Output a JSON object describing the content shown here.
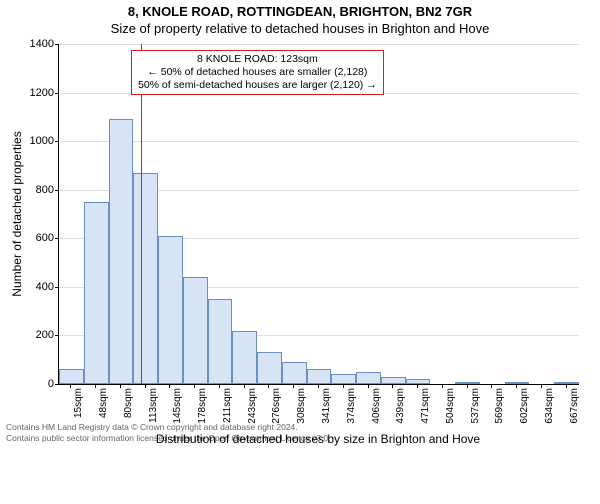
{
  "title_main": "8, KNOLE ROAD, ROTTINGDEAN, BRIGHTON, BN2 7GR",
  "title_sub": "Size of property relative to detached houses in Brighton and Hove",
  "chart": {
    "type": "histogram",
    "bar_color": "#d6e4f5",
    "bar_border_color": "#6a8fc0",
    "grid_color": "#e0e0e0",
    "background_color": "#ffffff",
    "ylabel": "Number of detached properties",
    "xlabel": "Distribution of detached houses by size in Brighton and Hove",
    "ylim_max": 1400,
    "ytick_step": 200,
    "x_categories": [
      "15sqm",
      "48sqm",
      "80sqm",
      "113sqm",
      "145sqm",
      "178sqm",
      "211sqm",
      "243sqm",
      "276sqm",
      "308sqm",
      "341sqm",
      "374sqm",
      "406sqm",
      "439sqm",
      "471sqm",
      "504sqm",
      "537sqm",
      "569sqm",
      "602sqm",
      "634sqm",
      "667sqm"
    ],
    "values": [
      60,
      750,
      1090,
      870,
      610,
      440,
      350,
      220,
      130,
      90,
      60,
      40,
      50,
      30,
      20,
      0,
      10,
      0,
      10,
      0,
      10
    ],
    "reference": {
      "position_index": 3.3,
      "color": "#d02020",
      "box_lines": [
        "8 KNOLE ROAD: 123sqm",
        "← 50% of detached houses are smaller (2,128)",
        "50% of semi-detached houses are larger (2,120) →"
      ]
    }
  },
  "footer_line1": "Contains HM Land Registry data © Crown copyright and database right 2024.",
  "footer_line2": "Contains public sector information licensed under the Open Government Licence v3.0."
}
